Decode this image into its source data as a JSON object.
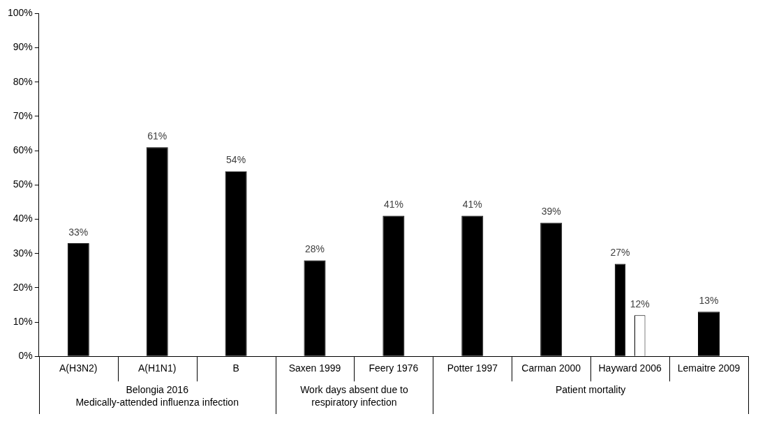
{
  "chart_data": {
    "type": "bar",
    "categories": [
      "A(H3N2)",
      "A(H1N1)",
      "B",
      "Saxen 1999",
      "Feery 1976",
      "Potter 1997",
      "Carman 2000",
      "Hayward 2006",
      "Lemaitre 2009"
    ],
    "series": [
      {
        "color": "#000000",
        "values": [
          33,
          61,
          54,
          28,
          41,
          41,
          39,
          27,
          13
        ],
        "value_labels": [
          "33%",
          "61%",
          "54%",
          "28%",
          "41%",
          "41%",
          "39%",
          "27%",
          "13%"
        ]
      },
      {
        "color": "#ffffff",
        "values": [
          null,
          null,
          null,
          null,
          null,
          null,
          null,
          12,
          null
        ],
        "value_labels": [
          null,
          null,
          null,
          null,
          null,
          null,
          null,
          "12%",
          null
        ]
      }
    ],
    "ylim": [
      0,
      100
    ],
    "yticks": [
      {
        "value": 0,
        "label": "0%"
      },
      {
        "value": 10,
        "label": "10%"
      },
      {
        "value": 20,
        "label": "20%"
      },
      {
        "value": 30,
        "label": "30%"
      },
      {
        "value": 40,
        "label": "40%"
      },
      {
        "value": 50,
        "label": "50%"
      },
      {
        "value": 60,
        "label": "60%"
      },
      {
        "value": 70,
        "label": "70%"
      },
      {
        "value": 80,
        "label": "80%"
      },
      {
        "value": 90,
        "label": "90%"
      },
      {
        "value": 100,
        "label": "100%"
      }
    ],
    "annotations": [
      "Belongia 2016\nMedically-attended influenza infection",
      "Work days absent due to\nrespiratory infection",
      "Patient mortality"
    ],
    "grid": false,
    "legend": false
  }
}
